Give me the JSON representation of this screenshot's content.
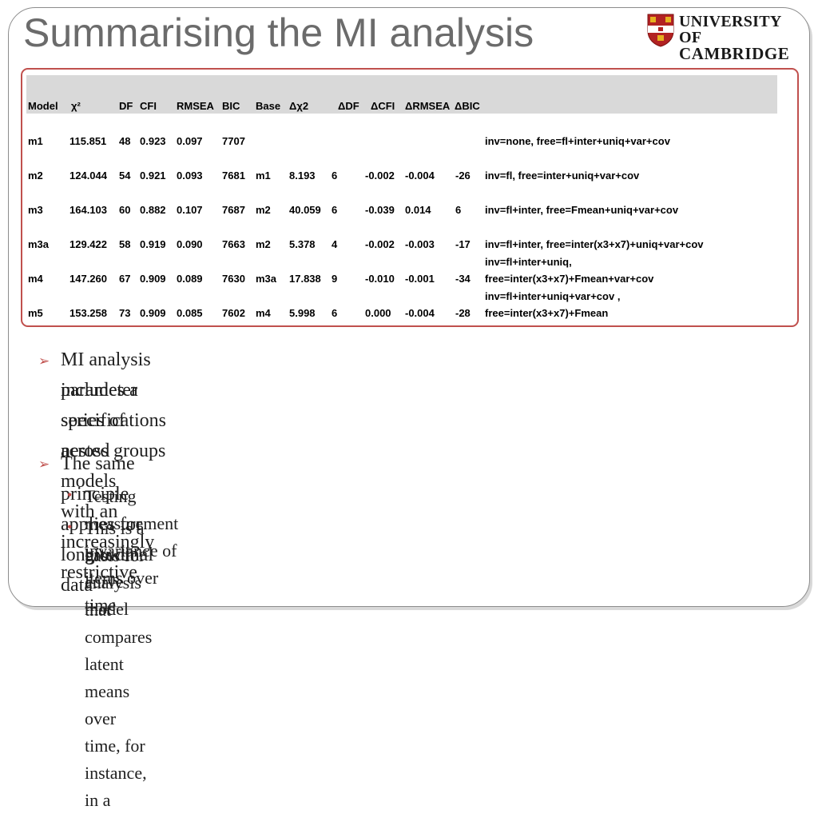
{
  "slide": {
    "title": "Summarising the MI analysis",
    "logo": {
      "line1": "UNIVERSITY OF",
      "line2": "CAMBRIDGE"
    }
  },
  "table": {
    "headers": [
      "Model",
      "χ²",
      "DF",
      "CFI",
      "RMSEA",
      "BIC",
      "Base",
      "Δχ2",
      "ΔDF",
      "ΔCFI",
      "ΔRMSEA",
      "ΔBIC"
    ],
    "rows": [
      {
        "model": "m1",
        "chi2": "115.851",
        "df": "48",
        "cfi": "0.923",
        "rmsea": "0.097",
        "bic": "7707",
        "base": "",
        "dchi2": "",
        "ddf": "",
        "dcfi": "",
        "drmsea": "",
        "dbic": "",
        "note1": "",
        "note2": "inv=none, free=fl+inter+uniq+var+cov"
      },
      {
        "model": "m2",
        "chi2": "124.044",
        "df": "54",
        "cfi": "0.921",
        "rmsea": "0.093",
        "bic": "7681",
        "base": "m1",
        "dchi2": "8.193",
        "ddf": "6",
        "dcfi": "-0.002",
        "drmsea": "-0.004",
        "dbic": "-26",
        "note1": "",
        "note2": "inv=fl, free=inter+uniq+var+cov"
      },
      {
        "model": "m3",
        "chi2": "164.103",
        "df": "60",
        "cfi": "0.882",
        "rmsea": "0.107",
        "bic": "7687",
        "base": "m2",
        "dchi2": "40.059",
        "ddf": "6",
        "dcfi": "-0.039",
        "drmsea": "0.014",
        "dbic": "6",
        "note1": "",
        "note2": "inv=fl+inter, free=Fmean+uniq+var+cov"
      },
      {
        "model": "m3a",
        "chi2": "129.422",
        "df": "58",
        "cfi": "0.919",
        "rmsea": "0.090",
        "bic": "7663",
        "base": "m2",
        "dchi2": "5.378",
        "ddf": "4",
        "dcfi": "-0.002",
        "drmsea": "-0.003",
        "dbic": "-17",
        "note1": "",
        "note2": "inv=fl+inter, free=inter(x3+x7)+uniq+var+cov"
      },
      {
        "model": "m4",
        "chi2": "147.260",
        "df": "67",
        "cfi": "0.909",
        "rmsea": "0.089",
        "bic": "7630",
        "base": "m3a",
        "dchi2": "17.838",
        "ddf": "9",
        "dcfi": "-0.010",
        "drmsea": "-0.001",
        "dbic": "-34",
        "note1": "inv=fl+inter+uniq,",
        "note2": "free=inter(x3+x7)+Fmean+var+cov"
      },
      {
        "model": "m5",
        "chi2": "153.258",
        "df": "73",
        "cfi": "0.909",
        "rmsea": "0.085",
        "bic": "7602",
        "base": "m4",
        "dchi2": "5.998",
        "ddf": "6",
        "dcfi": "0.000",
        "drmsea": "-0.004",
        "dbic": "-28",
        "note1": "inv=fl+inter+uniq+var+cov ,",
        "note2": "free=inter(x3+x7)+Fmean"
      }
    ]
  },
  "bullets": [
    {
      "text_line1": "MI analysis includes a series of nested models with an increasingly restrictive",
      "text_line2": "parameter specifications across groups"
    },
    {
      "text_line1": "The same principle applies for longitudinal data",
      "sub": [
        {
          "line1": "Testing measurement invariance of items over time",
          "line2": ""
        },
        {
          "line1": "This is a basis for analysis that compares latent means over time, for instance, in a",
          "line2": "growth curve model"
        }
      ]
    }
  ],
  "colors": {
    "accent": "#c0504d",
    "title": "#6b6b6b",
    "header_band": "#d9d9d9"
  }
}
